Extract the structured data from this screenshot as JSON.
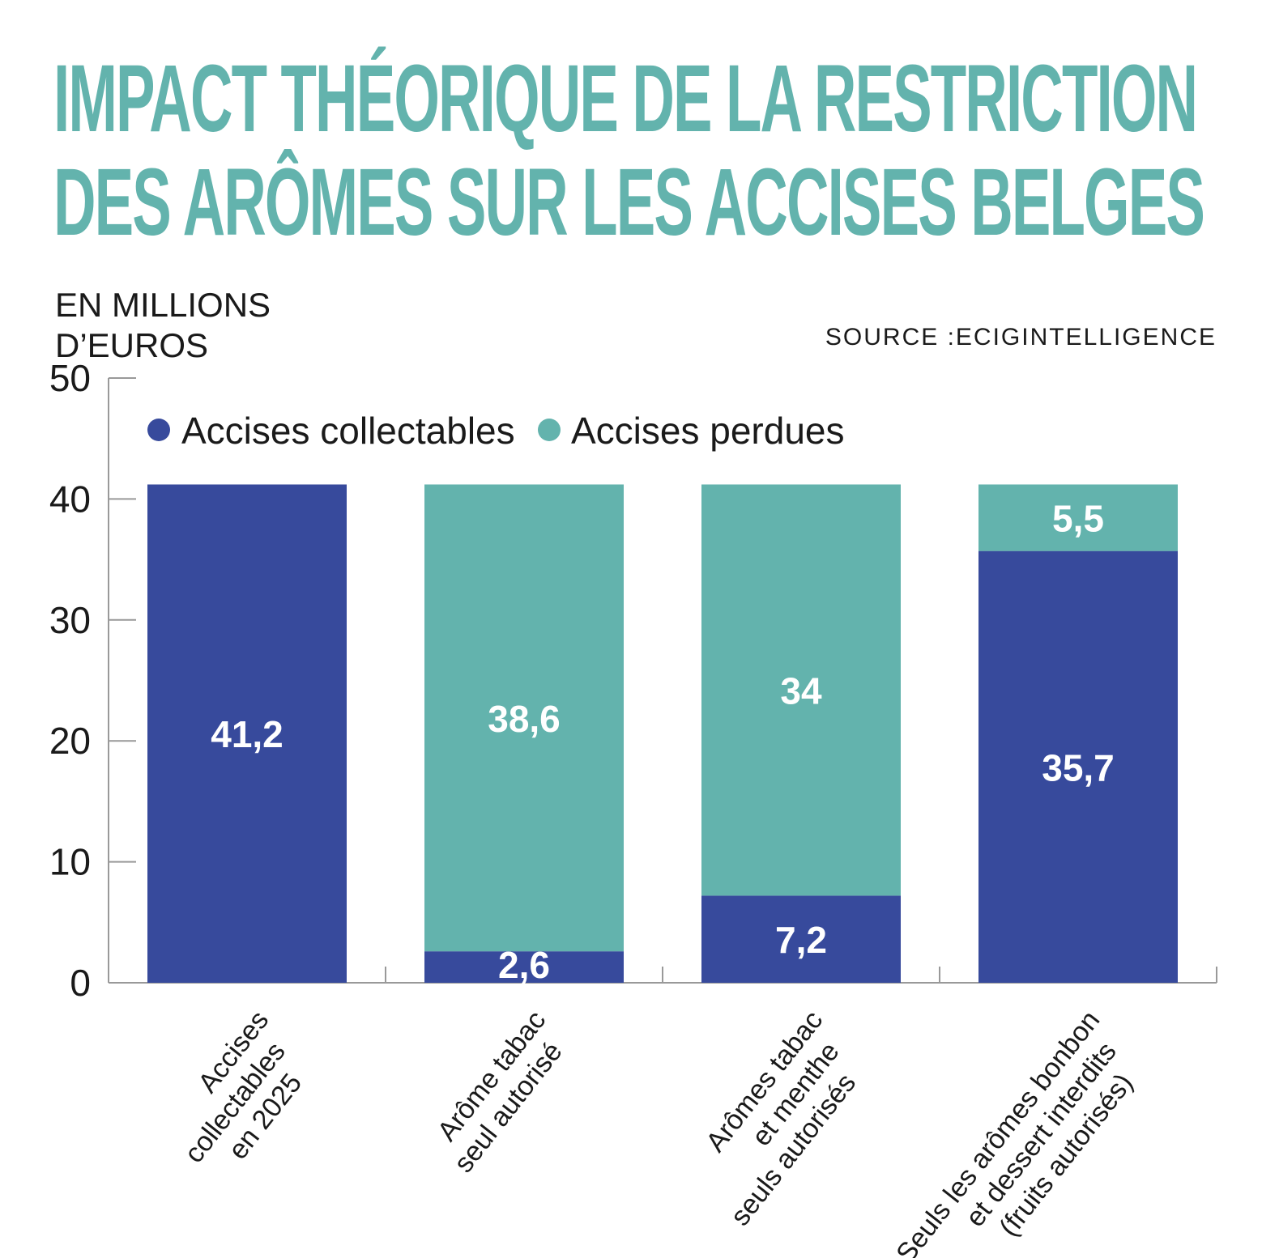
{
  "title_lines": [
    "IMPACT THÉORIQUE DE LA RESTRICTION",
    "DES ARÔMES SUR LES ACCISES BELGES"
  ],
  "unit_lines": [
    "EN MILLIONS",
    "D’EUROS"
  ],
  "source": "SOURCE :ECIGINTELLIGENCE",
  "colors": {
    "collectables": "#374a9c",
    "perdues": "#63b3ad",
    "title": "#63b3ad",
    "axis": "#999999"
  },
  "chart_data": {
    "type": "bar",
    "stacked": true,
    "ylim": [
      0,
      50
    ],
    "yticks": [
      "0",
      "10",
      "20",
      "30",
      "40",
      "50"
    ],
    "legend_position": "top-left",
    "categories": [
      [
        "Accises",
        "collectables",
        "en 2025"
      ],
      [
        "Arôme tabac",
        "seul autorisé"
      ],
      [
        "Arômes tabac",
        "et menthe",
        "seuls autorisés"
      ],
      [
        "Seuls les arômes bonbon",
        "et dessert interdits",
        "(fruits autorisés)"
      ]
    ],
    "series": [
      {
        "name": "Accises collectables",
        "values": [
          41.2,
          2.6,
          7.2,
          35.7
        ],
        "labels": [
          "41,2",
          "2,6",
          "7,2",
          "35,7"
        ]
      },
      {
        "name": "Accises perdues",
        "values": [
          0,
          38.6,
          34,
          5.5
        ],
        "labels": [
          "",
          "38,6",
          "34",
          "5,5"
        ]
      }
    ]
  }
}
